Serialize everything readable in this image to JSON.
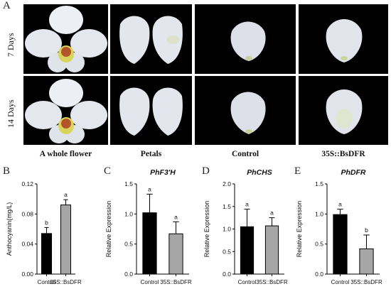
{
  "figure": {
    "panel_a_letter": "A",
    "row_labels": [
      "7 Days",
      "14 Days"
    ],
    "column_labels": [
      "A whole flower",
      "Petals",
      "Control",
      "35S::BsDFR"
    ],
    "colors": {
      "black_bar": "#000000",
      "gray_bar": "#a6a6a6",
      "photo_bg": "#000000"
    }
  },
  "chart_data": [
    {
      "panel": "B",
      "type": "bar",
      "title": "",
      "ylabel": "Anthocyanin(mg/L)",
      "ylim": [
        0.0,
        0.12
      ],
      "yticks": [
        "0.00",
        "0.04",
        "0.08",
        "0.12"
      ],
      "ytick_values": [
        0,
        0.04,
        0.08,
        0.12
      ],
      "categories": [
        "Control",
        "35S::BsDFR"
      ],
      "values": [
        0.054,
        0.092
      ],
      "errors": [
        0.008,
        0.007
      ],
      "letters": [
        "b",
        "a"
      ]
    },
    {
      "panel": "C",
      "type": "bar",
      "title": "PhF3'H",
      "ylabel": "Relative Expression",
      "ylim": [
        0.0,
        1.5
      ],
      "yticks": [
        "0.0",
        "0.5",
        "1.0",
        "1.5"
      ],
      "ytick_values": [
        0,
        0.5,
        1.0,
        1.5
      ],
      "categories": [
        "Control",
        "35S::BsDFR"
      ],
      "values": [
        1.02,
        0.67
      ],
      "errors": [
        0.31,
        0.2
      ],
      "letters": [
        "a",
        "a"
      ]
    },
    {
      "panel": "D",
      "type": "bar",
      "title": "PhCHS",
      "ylabel": "Relative Expression",
      "ylim": [
        0.0,
        2.0
      ],
      "yticks": [
        "0.0",
        "0.5",
        "1.0",
        "1.5",
        "2.0"
      ],
      "ytick_values": [
        0,
        0.5,
        1.0,
        1.5,
        2.0
      ],
      "categories": [
        "Control",
        "35S::BsDFR"
      ],
      "values": [
        1.05,
        1.07
      ],
      "errors": [
        0.39,
        0.18
      ],
      "letters": [
        "a",
        "a"
      ]
    },
    {
      "panel": "E",
      "type": "bar",
      "title": "PhDFR",
      "ylabel": "Relative Expression",
      "ylim": [
        0.0,
        1.5
      ],
      "yticks": [
        "0.0",
        "0.5",
        "1.0",
        "1.5"
      ],
      "ytick_values": [
        0,
        0.5,
        1.0,
        1.5
      ],
      "categories": [
        "Control",
        "35S::BsDFR"
      ],
      "values": [
        0.99,
        0.42
      ],
      "errors": [
        0.09,
        0.23
      ],
      "letters": [
        "a",
        "b"
      ]
    }
  ]
}
